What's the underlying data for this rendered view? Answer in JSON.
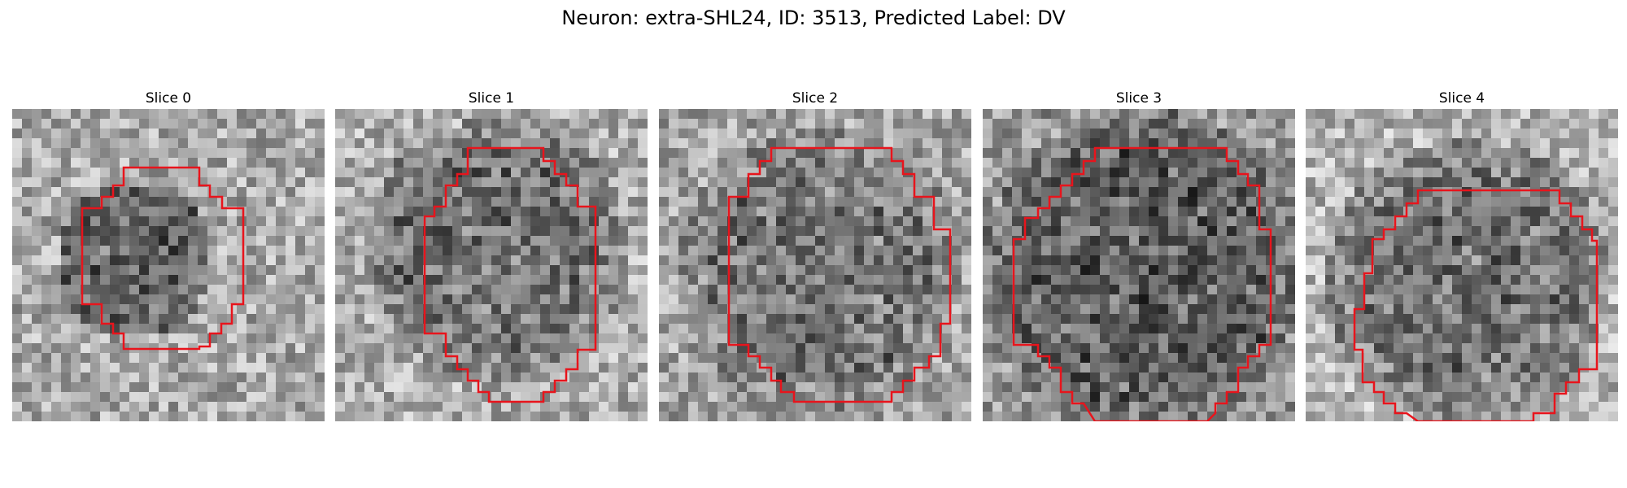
{
  "figure": {
    "title": "Neuron: extra-SHL24, ID: 3513, Predicted Label: DV"
  },
  "panels": [
    {
      "title": "Slice 0"
    },
    {
      "title": "Slice 1"
    },
    {
      "title": "Slice 2"
    },
    {
      "title": "Slice 3"
    },
    {
      "title": "Slice 4"
    }
  ],
  "colors": {
    "contour": "#e8141c",
    "background": "#ffffff"
  },
  "image_style": "grayscale"
}
